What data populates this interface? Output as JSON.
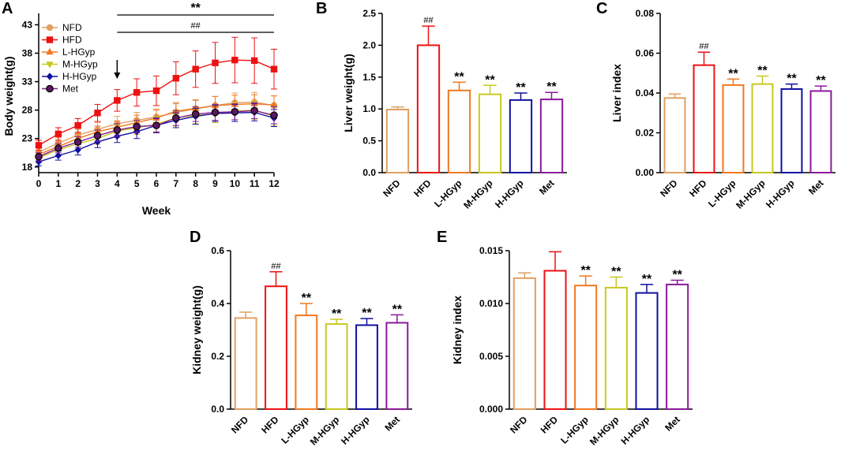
{
  "figure": {
    "panels": [
      "A",
      "B",
      "C",
      "D",
      "E"
    ]
  },
  "colors": {
    "NFD": "#E0A060",
    "HFD": "#EE1111",
    "L-HGyp": "#F07820",
    "M-HGyp": "#C8C820",
    "H-HGyp": "#1010A0",
    "Met": "#8A1A9A",
    "Met_marker": "#5A1860"
  },
  "chart_data": [
    {
      "panel": "A",
      "type": "line",
      "xlabel": "Week",
      "ylabel": "Body weight(g)",
      "x": [
        0,
        1,
        2,
        3,
        4,
        5,
        6,
        7,
        8,
        9,
        10,
        11,
        12
      ],
      "xlim": [
        0,
        12
      ],
      "ylim": [
        17,
        45
      ],
      "yticks": [
        18,
        23,
        28,
        33,
        38,
        43
      ],
      "series": [
        {
          "name": "NFD",
          "marker": "circle",
          "values": [
            20.6,
            22.2,
            23.6,
            24.6,
            25.6,
            26.2,
            26.8,
            27.6,
            28.2,
            28.8,
            29.3,
            29.4,
            28.8
          ],
          "errors": [
            0.7,
            0.9,
            1.0,
            1.2,
            1.3,
            1.4,
            1.4,
            1.5,
            1.5,
            1.6,
            1.7,
            1.7,
            1.7
          ]
        },
        {
          "name": "HFD",
          "marker": "square",
          "values": [
            21.8,
            23.8,
            25.3,
            27.5,
            29.7,
            31.1,
            31.4,
            33.6,
            35.2,
            36.3,
            36.8,
            36.7,
            35.2
          ],
          "errors": [
            0.9,
            1.1,
            1.2,
            1.5,
            1.9,
            2.4,
            2.6,
            2.9,
            3.2,
            3.6,
            4.0,
            4.0,
            3.5
          ]
        },
        {
          "name": "L-HGyp",
          "marker": "triangle-up",
          "values": [
            20.2,
            21.6,
            23.0,
            24.2,
            25.0,
            25.8,
            26.6,
            27.8,
            28.3,
            28.8,
            29.0,
            29.1,
            28.9
          ],
          "errors": [
            0.7,
            0.8,
            0.9,
            1.0,
            1.1,
            1.3,
            1.4,
            1.5,
            1.5,
            1.6,
            1.6,
            1.6,
            1.6
          ]
        },
        {
          "name": "M-HGyp",
          "marker": "triangle-down",
          "values": [
            19.6,
            21.0,
            22.1,
            23.0,
            24.3,
            24.9,
            25.5,
            26.6,
            27.1,
            27.3,
            27.8,
            28.0,
            26.9
          ],
          "errors": [
            0.7,
            0.8,
            0.9,
            1.0,
            1.1,
            1.2,
            1.3,
            1.4,
            1.5,
            1.5,
            1.5,
            1.6,
            1.6
          ]
        },
        {
          "name": "H-HGyp",
          "marker": "diamond",
          "values": [
            18.9,
            20.0,
            21.0,
            22.4,
            23.4,
            24.2,
            25.3,
            26.2,
            26.9,
            27.4,
            27.5,
            27.6,
            26.6
          ],
          "errors": [
            0.7,
            0.8,
            0.9,
            1.0,
            1.1,
            1.2,
            1.3,
            1.3,
            1.4,
            1.4,
            1.5,
            1.5,
            1.5
          ]
        },
        {
          "name": "Met",
          "marker": "circle",
          "values": [
            19.8,
            21.3,
            22.4,
            23.5,
            24.5,
            25.1,
            25.3,
            26.6,
            27.3,
            27.6,
            27.7,
            27.9,
            27.1
          ],
          "errors": [
            0.7,
            0.8,
            0.9,
            1.0,
            1.1,
            1.1,
            1.2,
            1.3,
            1.3,
            1.4,
            1.4,
            1.4,
            1.5
          ]
        }
      ],
      "annotations": {
        "star_line_label": "**",
        "star_line_range": [
          4,
          12
        ],
        "hash_line_label": "##",
        "hash_line_range": [
          4,
          12
        ],
        "arrow_week": 4
      }
    },
    {
      "panel": "B",
      "type": "bar",
      "ylabel": "Liver weight(g)",
      "categories": [
        "NFD",
        "HFD",
        "L-HGyp",
        "M-HGyp",
        "H-HGyp",
        "Met"
      ],
      "values": [
        0.99,
        2.0,
        1.29,
        1.23,
        1.14,
        1.15
      ],
      "errors": [
        0.04,
        0.3,
        0.13,
        0.14,
        0.11,
        0.11
      ],
      "marks": [
        "",
        "##",
        "**",
        "**",
        "**",
        "**"
      ],
      "ylim": [
        0,
        2.5
      ],
      "yticks": [
        "0.0",
        "0.5",
        "1.0",
        "1.5",
        "2.0",
        "2.5"
      ]
    },
    {
      "panel": "C",
      "type": "bar",
      "ylabel": "Liver index",
      "categories": [
        "NFD",
        "HFD",
        "L-HGyp",
        "M-HGyp",
        "H-HGyp",
        "Met"
      ],
      "values": [
        0.0375,
        0.054,
        0.044,
        0.0445,
        0.042,
        0.041
      ],
      "errors": [
        0.002,
        0.0065,
        0.003,
        0.004,
        0.0025,
        0.0025
      ],
      "marks": [
        "",
        "##",
        "**",
        "**",
        "**",
        "**"
      ],
      "ylim": [
        0,
        0.08
      ],
      "yticks": [
        "0.00",
        "0.02",
        "0.04",
        "0.06",
        "0.08"
      ]
    },
    {
      "panel": "D",
      "type": "bar",
      "ylabel": "Kidney weight(g)",
      "categories": [
        "NFD",
        "HFD",
        "L-HGyp",
        "M-HGyp",
        "H-HGyp",
        "Met"
      ],
      "values": [
        0.345,
        0.465,
        0.355,
        0.322,
        0.318,
        0.327
      ],
      "errors": [
        0.022,
        0.055,
        0.045,
        0.018,
        0.025,
        0.03
      ],
      "marks": [
        "",
        "##",
        "**",
        "**",
        "**",
        "**"
      ],
      "ylim": [
        0,
        0.6
      ],
      "yticks": [
        "0.0",
        "0.2",
        "0.4",
        "0.6"
      ]
    },
    {
      "panel": "E",
      "type": "bar",
      "ylabel": "Kidney index",
      "categories": [
        "NFD",
        "HFD",
        "L-HGyp",
        "M-HGyp",
        "H-HGyp",
        "Met"
      ],
      "values": [
        0.0124,
        0.0131,
        0.0117,
        0.0115,
        0.011,
        0.0118
      ],
      "errors": [
        0.0005,
        0.0018,
        0.0009,
        0.001,
        0.0008,
        0.0004
      ],
      "marks": [
        "",
        "",
        "**",
        "**",
        "**",
        "**"
      ],
      "ylim": [
        0,
        0.015
      ],
      "yticks": [
        "0.000",
        "0.005",
        "0.010",
        "0.015"
      ]
    }
  ]
}
